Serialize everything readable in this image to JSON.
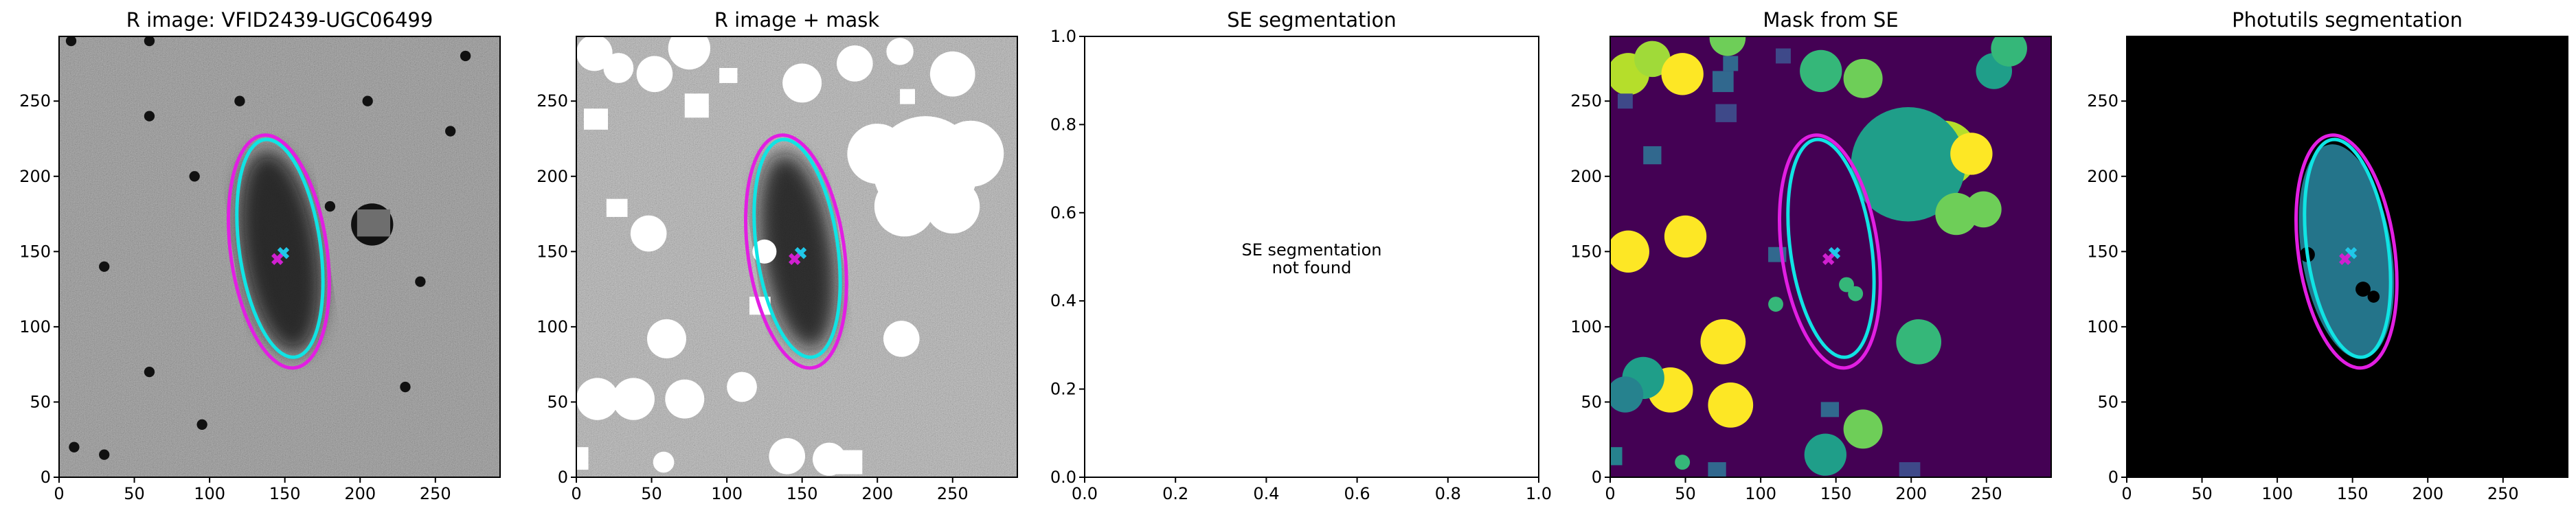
{
  "chart_data": [
    {
      "type": "image",
      "title": "R image: VFID2439-UGC06499",
      "xlim": [
        0,
        293
      ],
      "ylim": [
        0,
        293
      ],
      "xticks": [
        0,
        50,
        100,
        150,
        200,
        250
      ],
      "yticks": [
        0,
        50,
        100,
        150,
        200,
        250
      ]
    },
    {
      "type": "image",
      "title": "R image + mask",
      "xlim": [
        0,
        293
      ],
      "ylim": [
        0,
        293
      ],
      "xticks": [
        0,
        50,
        100,
        150,
        200,
        250
      ],
      "yticks": [
        0,
        50,
        100,
        150,
        200,
        250
      ]
    },
    {
      "type": "empty",
      "title": "SE segmentation",
      "annotation": [
        "SE segmentation",
        "not found"
      ],
      "xlim": [
        0,
        1
      ],
      "ylim": [
        0,
        1
      ],
      "xticks": [
        {
          "value": 0,
          "label": "0.0"
        },
        0.2,
        0.4,
        0.6,
        0.8,
        {
          "value": 1,
          "label": "1.0"
        }
      ],
      "yticks": [
        {
          "value": 0,
          "label": "0.0"
        },
        0.2,
        0.4,
        0.6,
        0.8,
        {
          "value": 1,
          "label": "1.0"
        }
      ]
    },
    {
      "type": "image",
      "title": "Mask from SE",
      "xlim": [
        0,
        293
      ],
      "ylim": [
        0,
        293
      ],
      "xticks": [
        0,
        50,
        100,
        150,
        200,
        250
      ],
      "yticks": [
        0,
        50,
        100,
        150,
        200,
        250
      ]
    },
    {
      "type": "image",
      "title": "Photutils segmentation",
      "xlim": [
        0,
        293
      ],
      "ylim": [
        0,
        293
      ],
      "xticks": [
        0,
        50,
        100,
        150,
        200,
        250
      ],
      "yticks": [
        0,
        50,
        100,
        150,
        200,
        250
      ]
    }
  ]
}
